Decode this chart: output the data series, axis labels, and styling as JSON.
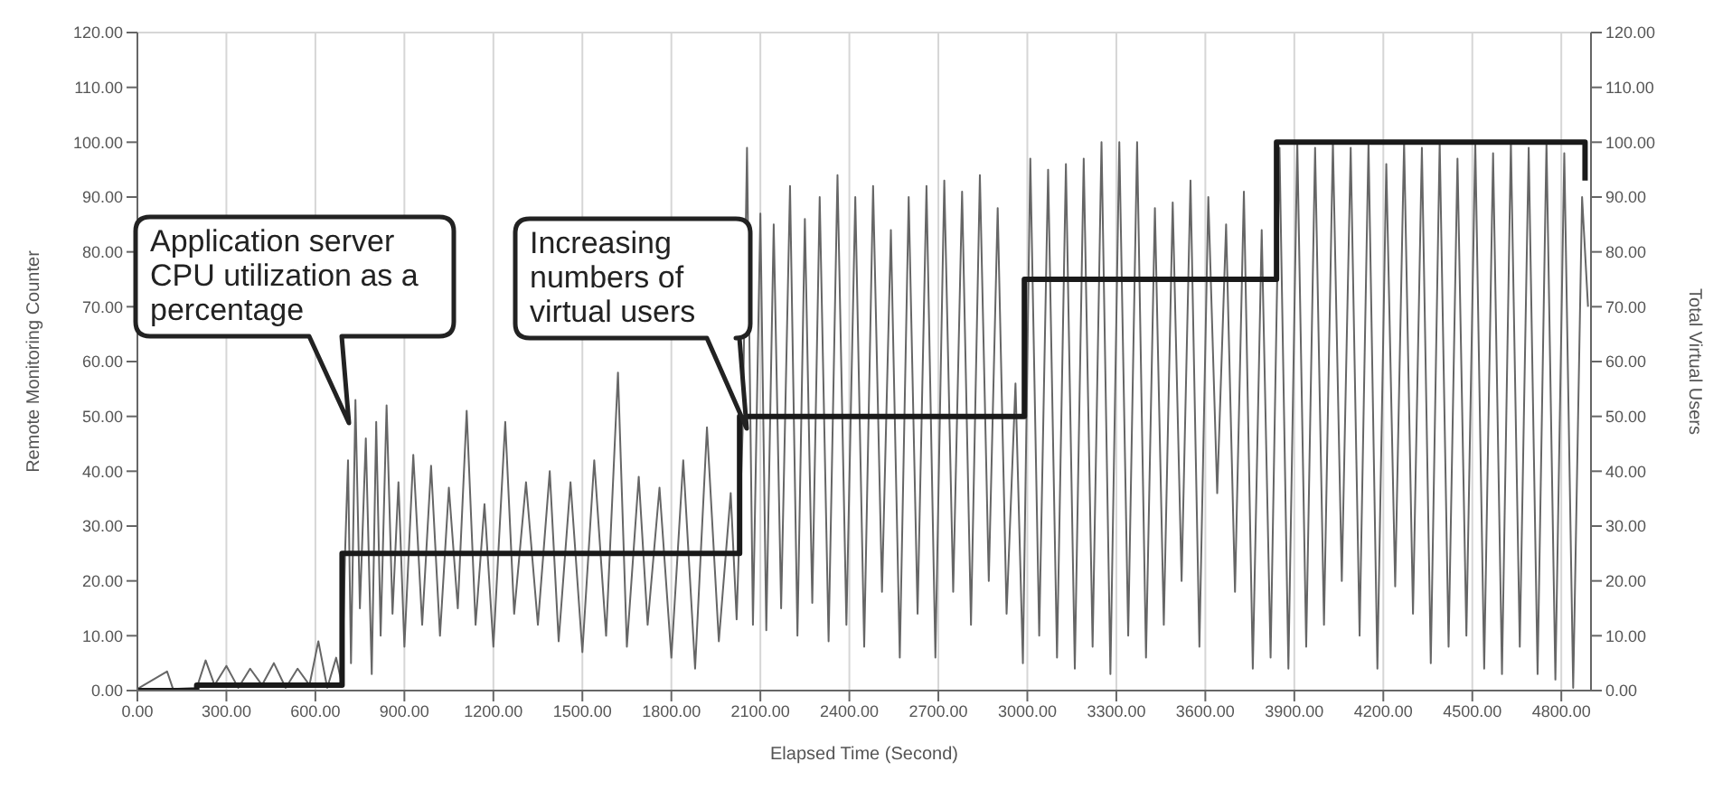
{
  "chart_data": {
    "type": "line",
    "xlabel": "Elapsed Time (Second)",
    "ylabel": "Remote Monitoring Counter",
    "y2label": "Total Virtual Users",
    "xlim": [
      0,
      4900
    ],
    "xticks": [
      {
        "value": 0,
        "label": "0.00"
      },
      {
        "value": 300,
        "label": "300.00"
      },
      {
        "value": 600,
        "label": "600.00"
      },
      {
        "value": 900,
        "label": "900.00"
      },
      {
        "value": 1200,
        "label": "1200.00"
      },
      {
        "value": 1500,
        "label": "1500.00"
      },
      {
        "value": 1800,
        "label": "1800.00"
      },
      {
        "value": 2100,
        "label": "2100.00"
      },
      {
        "value": 2400,
        "label": "2400.00"
      },
      {
        "value": 2700,
        "label": "2700.00"
      },
      {
        "value": 3000,
        "label": "3000.00"
      },
      {
        "value": 3300,
        "label": "3300.00"
      },
      {
        "value": 3600,
        "label": "3600.00"
      },
      {
        "value": 3900,
        "label": "3900.00"
      },
      {
        "value": 4200,
        "label": "4200.00"
      },
      {
        "value": 4500,
        "label": "4500.00"
      },
      {
        "value": 4800,
        "label": "4800.00"
      }
    ],
    "ylim": [
      0,
      120
    ],
    "yticks": [
      {
        "value": 0,
        "label": "0.00"
      },
      {
        "value": 10,
        "label": "10.00"
      },
      {
        "value": 20,
        "label": "20.00"
      },
      {
        "value": 30,
        "label": "30.00"
      },
      {
        "value": 40,
        "label": "40.00"
      },
      {
        "value": 50,
        "label": "50.00"
      },
      {
        "value": 60,
        "label": "60.00"
      },
      {
        "value": 70,
        "label": "70.00"
      },
      {
        "value": 80,
        "label": "80.00"
      },
      {
        "value": 90,
        "label": "90.00"
      },
      {
        "value": 100,
        "label": "100.00"
      },
      {
        "value": 110,
        "label": "110.00"
      },
      {
        "value": 120,
        "label": "120.00"
      }
    ],
    "y2lim": [
      0,
      120
    ],
    "y2ticks": [
      {
        "value": 0,
        "label": "0.00"
      },
      {
        "value": 10,
        "label": "10.00"
      },
      {
        "value": 20,
        "label": "20.00"
      },
      {
        "value": 30,
        "label": "30.00"
      },
      {
        "value": 40,
        "label": "40.00"
      },
      {
        "value": 50,
        "label": "50.00"
      },
      {
        "value": 60,
        "label": "60.00"
      },
      {
        "value": 70,
        "label": "70.00"
      },
      {
        "value": 80,
        "label": "80.00"
      },
      {
        "value": 90,
        "label": "90.00"
      },
      {
        "value": 100,
        "label": "100.00"
      },
      {
        "value": 110,
        "label": "110.00"
      },
      {
        "value": 120,
        "label": "120.00"
      }
    ],
    "grid": true,
    "series": [
      {
        "color": "#666666",
        "x": [
          0,
          100,
          120,
          200,
          230,
          260,
          300,
          340,
          380,
          420,
          460,
          500,
          540,
          580,
          610,
          640,
          670,
          690,
          700,
          710,
          720,
          735,
          750,
          770,
          790,
          805,
          820,
          840,
          860,
          880,
          900,
          930,
          960,
          990,
          1020,
          1050,
          1080,
          1110,
          1140,
          1170,
          1200,
          1240,
          1270,
          1310,
          1350,
          1390,
          1420,
          1460,
          1500,
          1540,
          1580,
          1620,
          1650,
          1690,
          1720,
          1760,
          1800,
          1840,
          1880,
          1920,
          1960,
          2000,
          2020,
          2040,
          2055,
          2075,
          2100,
          2120,
          2145,
          2170,
          2200,
          2225,
          2250,
          2275,
          2300,
          2330,
          2360,
          2390,
          2420,
          2450,
          2480,
          2510,
          2540,
          2570,
          2600,
          2630,
          2660,
          2690,
          2720,
          2750,
          2780,
          2810,
          2840,
          2870,
          2900,
          2930,
          2960,
          2985,
          3010,
          3040,
          3070,
          3100,
          3130,
          3160,
          3190,
          3220,
          3250,
          3280,
          3310,
          3340,
          3370,
          3400,
          3430,
          3460,
          3490,
          3520,
          3550,
          3580,
          3610,
          3640,
          3670,
          3700,
          3730,
          3760,
          3790,
          3820,
          3850,
          3880,
          3910,
          3940,
          3970,
          4000,
          4030,
          4060,
          4090,
          4120,
          4150,
          4180,
          4210,
          4240,
          4270,
          4300,
          4330,
          4360,
          4390,
          4420,
          4450,
          4480,
          4510,
          4540,
          4570,
          4600,
          4630,
          4660,
          4690,
          4720,
          4750,
          4780,
          4810,
          4840,
          4870,
          4890
        ],
        "values": [
          0.3,
          3.5,
          0.3,
          0.5,
          5.5,
          1,
          4.5,
          0.5,
          4,
          1,
          5,
          0.5,
          4,
          1,
          9,
          0.5,
          6,
          1,
          25,
          42,
          5,
          53,
          15,
          46,
          3,
          49,
          10,
          52,
          14,
          38,
          8,
          43,
          12,
          41,
          10,
          37,
          15,
          51,
          12,
          34,
          8,
          49,
          14,
          38,
          12,
          40,
          9,
          38,
          7,
          42,
          10,
          58,
          8,
          39,
          12,
          37,
          6,
          42,
          4,
          48,
          9,
          36,
          13,
          47,
          99,
          12,
          87,
          11,
          85,
          15,
          92,
          10,
          86,
          16,
          90,
          9,
          94,
          12,
          90,
          8,
          92,
          18,
          84,
          6,
          90,
          14,
          92,
          6,
          93,
          18,
          91,
          12,
          94,
          20,
          88,
          14,
          56,
          5,
          97,
          10,
          95,
          6,
          96,
          4,
          97,
          8,
          100,
          3,
          100,
          10,
          100,
          6,
          88,
          12,
          89,
          20,
          93,
          8,
          90,
          36,
          85,
          18,
          91,
          4,
          84,
          6,
          99,
          4,
          100,
          8,
          99,
          12,
          100,
          20,
          99,
          10,
          100,
          4,
          96,
          19,
          100,
          14,
          99,
          5,
          100,
          8,
          97,
          10,
          100,
          4,
          98,
          3,
          100,
          8,
          99,
          3,
          100,
          2,
          98,
          0.5,
          90,
          70
        ]
      },
      {
        "type": "step",
        "axis": "y2",
        "color": "#1a1a1a",
        "x": [
          0,
          200,
          690,
          2030,
          2990,
          3840,
          4880
        ],
        "values": [
          0,
          1,
          25,
          50,
          75,
          100,
          93
        ]
      }
    ],
    "annotations": [
      "Application server CPU utilization as a percentage",
      "Increasing numbers of virtual users"
    ]
  }
}
